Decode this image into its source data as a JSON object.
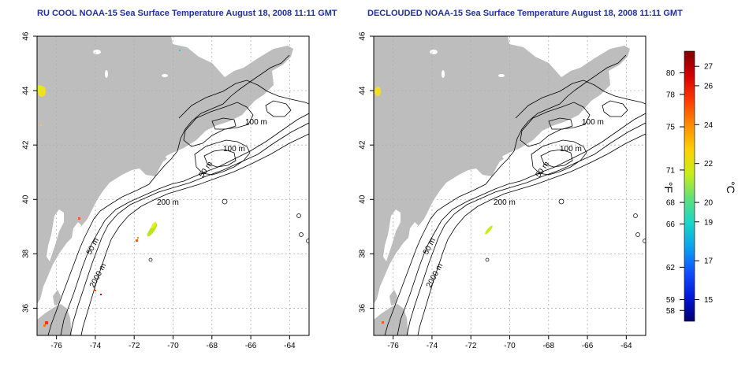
{
  "panels": [
    {
      "title": "RU COOL NOAA-15 Sea Surface Temperature August 18, 2008 11:11 GMT",
      "contour_labels": [
        "100 m",
        "100 m",
        "50 m",
        "200 m",
        "50 m",
        "2000 m"
      ]
    },
    {
      "title": "DECLOUDED NOAA-15 Sea Surface Temperature August 18, 2008 11:11 GMT",
      "contour_labels": [
        "100 m",
        "100 m",
        "50 m",
        "200 m",
        "50 m",
        "2000 m"
      ]
    }
  ],
  "axes": {
    "x_ticks": [
      "-76",
      "-74",
      "-72",
      "-70",
      "-68",
      "-66",
      "-64"
    ],
    "y_ticks": [
      "36",
      "38",
      "40",
      "42",
      "44",
      "46"
    ],
    "x_values": [
      -76,
      -74,
      -72,
      -70,
      -68,
      -66,
      -64
    ],
    "y_values": [
      36,
      38,
      40,
      42,
      44,
      46
    ],
    "xlim": [
      -77,
      -63
    ],
    "ylim": [
      35,
      46
    ],
    "grid": true
  },
  "colorbar": {
    "fahrenheit_label": "°F",
    "celsius_label": "°C",
    "fahrenheit_ticks": [
      "80",
      "78",
      "75",
      "71",
      "68",
      "66",
      "62",
      "59",
      "58"
    ],
    "celsius_ticks": [
      "27",
      "26",
      "24",
      "22",
      "20",
      "19",
      "17",
      "15"
    ],
    "colors": [
      "#7f0000",
      "#d40000",
      "#ff3a00",
      "#ff8c00",
      "#ffd000",
      "#c8ee1a",
      "#5fe07a",
      "#19d6c8",
      "#0aa0f0",
      "#1050ff",
      "#0018d8",
      "#00006e"
    ]
  },
  "colors": {
    "land": "#bdbdbd",
    "water": "#ffffff",
    "contour": "#000000",
    "grid": "#b0b0b0",
    "title": "#1f2fa6"
  }
}
